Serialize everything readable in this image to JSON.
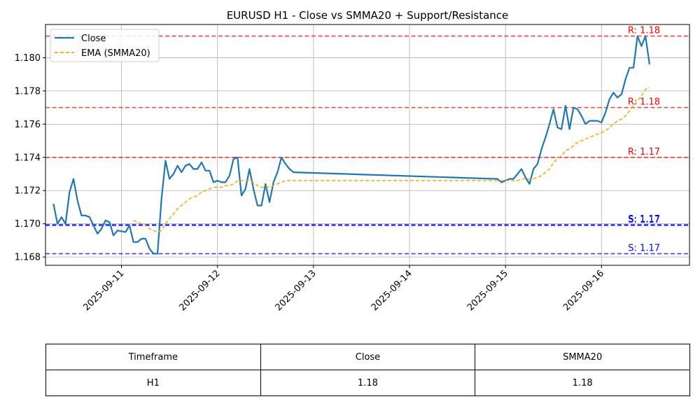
{
  "chart_data": {
    "type": "line",
    "title": "EURUSD H1 - Close vs SMMA20 + Support/Resistance",
    "xlabel": "",
    "ylabel": "",
    "xlim": [
      "2025-09-10T05:00",
      "2025-09-16T22:00"
    ],
    "ylim": [
      1.1675,
      1.182
    ],
    "x_ticks": [
      "2025-09-11",
      "2025-09-12",
      "2025-09-13",
      "2025-09-14",
      "2025-09-15",
      "2025-09-16"
    ],
    "y_ticks": [
      "1.168",
      "1.170",
      "1.172",
      "1.174",
      "1.176",
      "1.178",
      "1.180"
    ],
    "grid": true,
    "legend": "top-left",
    "series": [
      {
        "name": "Close",
        "color": "#1f77b4",
        "style": "solid",
        "points": [
          [
            "2025-09-10T07:00",
            1.1712
          ],
          [
            "2025-09-10T08:00",
            1.17
          ],
          [
            "2025-09-10T09:00",
            1.1704
          ],
          [
            "2025-09-10T10:00",
            1.17
          ],
          [
            "2025-09-10T11:00",
            1.1719
          ],
          [
            "2025-09-10T12:00",
            1.1727
          ],
          [
            "2025-09-10T13:00",
            1.1714
          ],
          [
            "2025-09-10T14:00",
            1.1705
          ],
          [
            "2025-09-10T15:00",
            1.1705
          ],
          [
            "2025-09-10T16:00",
            1.1704
          ],
          [
            "2025-09-10T17:00",
            1.1699
          ],
          [
            "2025-09-10T18:00",
            1.1694
          ],
          [
            "2025-09-10T19:00",
            1.1697
          ],
          [
            "2025-09-10T20:00",
            1.1702
          ],
          [
            "2025-09-10T21:00",
            1.1701
          ],
          [
            "2025-09-10T22:00",
            1.1693
          ],
          [
            "2025-09-10T23:00",
            1.1696
          ],
          [
            "2025-09-11T01:00",
            1.1695
          ],
          [
            "2025-09-11T02:00",
            1.1699
          ],
          [
            "2025-09-11T03:00",
            1.1689
          ],
          [
            "2025-09-11T04:00",
            1.1689
          ],
          [
            "2025-09-11T05:00",
            1.1691
          ],
          [
            "2025-09-11T06:00",
            1.1691
          ],
          [
            "2025-09-11T07:00",
            1.1685
          ],
          [
            "2025-09-11T08:00",
            1.1682
          ],
          [
            "2025-09-11T09:00",
            1.1682
          ],
          [
            "2025-09-11T10:00",
            1.1715
          ],
          [
            "2025-09-11T11:00",
            1.1738
          ],
          [
            "2025-09-11T12:00",
            1.1727
          ],
          [
            "2025-09-11T13:00",
            1.173
          ],
          [
            "2025-09-11T14:00",
            1.1735
          ],
          [
            "2025-09-11T15:00",
            1.1731
          ],
          [
            "2025-09-11T16:00",
            1.1735
          ],
          [
            "2025-09-11T17:00",
            1.1736
          ],
          [
            "2025-09-11T18:00",
            1.1733
          ],
          [
            "2025-09-11T19:00",
            1.1733
          ],
          [
            "2025-09-11T20:00",
            1.1737
          ],
          [
            "2025-09-11T21:00",
            1.1732
          ],
          [
            "2025-09-11T22:00",
            1.1732
          ],
          [
            "2025-09-11T23:00",
            1.1725
          ],
          [
            "2025-09-12T00:00",
            1.1726
          ],
          [
            "2025-09-12T01:00",
            1.1725
          ],
          [
            "2025-09-12T02:00",
            1.1725
          ],
          [
            "2025-09-12T03:00",
            1.1729
          ],
          [
            "2025-09-12T04:00",
            1.1739
          ],
          [
            "2025-09-12T05:00",
            1.174
          ],
          [
            "2025-09-12T06:00",
            1.1717
          ],
          [
            "2025-09-12T07:00",
            1.1721
          ],
          [
            "2025-09-12T08:00",
            1.1733
          ],
          [
            "2025-09-12T09:00",
            1.1721
          ],
          [
            "2025-09-12T10:00",
            1.1711
          ],
          [
            "2025-09-12T11:00",
            1.1711
          ],
          [
            "2025-09-12T12:00",
            1.1724
          ],
          [
            "2025-09-12T13:00",
            1.1713
          ],
          [
            "2025-09-12T14:00",
            1.1725
          ],
          [
            "2025-09-12T15:00",
            1.1731
          ],
          [
            "2025-09-12T16:00",
            1.174
          ],
          [
            "2025-09-12T17:00",
            1.1736
          ],
          [
            "2025-09-12T18:00",
            1.1733
          ],
          [
            "2025-09-12T19:00",
            1.1731
          ],
          [
            "2025-09-14T22:00",
            1.1727
          ],
          [
            "2025-09-14T23:00",
            1.1725
          ],
          [
            "2025-09-15T00:00",
            1.1726
          ],
          [
            "2025-09-15T01:00",
            1.1727
          ],
          [
            "2025-09-15T02:00",
            1.1727
          ],
          [
            "2025-09-15T03:00",
            1.173
          ],
          [
            "2025-09-15T04:00",
            1.1733
          ],
          [
            "2025-09-15T05:00",
            1.1728
          ],
          [
            "2025-09-15T06:00",
            1.1724
          ],
          [
            "2025-09-15T07:00",
            1.1733
          ],
          [
            "2025-09-15T08:00",
            1.1736
          ],
          [
            "2025-09-15T09:00",
            1.1745
          ],
          [
            "2025-09-15T10:00",
            1.1752
          ],
          [
            "2025-09-15T11:00",
            1.176
          ],
          [
            "2025-09-15T12:00",
            1.1769
          ],
          [
            "2025-09-15T13:00",
            1.1758
          ],
          [
            "2025-09-15T14:00",
            1.1757
          ],
          [
            "2025-09-15T15:00",
            1.1771
          ],
          [
            "2025-09-15T16:00",
            1.1757
          ],
          [
            "2025-09-15T17:00",
            1.177
          ],
          [
            "2025-09-15T18:00",
            1.1769
          ],
          [
            "2025-09-15T19:00",
            1.1765
          ],
          [
            "2025-09-15T20:00",
            1.176
          ],
          [
            "2025-09-15T21:00",
            1.1762
          ],
          [
            "2025-09-15T22:00",
            1.1762
          ],
          [
            "2025-09-15T23:00",
            1.1762
          ],
          [
            "2025-09-16T00:00",
            1.1761
          ],
          [
            "2025-09-16T01:00",
            1.1767
          ],
          [
            "2025-09-16T02:00",
            1.1775
          ],
          [
            "2025-09-16T03:00",
            1.1779
          ],
          [
            "2025-09-16T04:00",
            1.1776
          ],
          [
            "2025-09-16T05:00",
            1.1778
          ],
          [
            "2025-09-16T06:00",
            1.1787
          ],
          [
            "2025-09-16T07:00",
            1.1794
          ],
          [
            "2025-09-16T08:00",
            1.1794
          ],
          [
            "2025-09-16T09:00",
            1.1813
          ],
          [
            "2025-09-16T10:00",
            1.1807
          ],
          [
            "2025-09-16T11:00",
            1.1813
          ],
          [
            "2025-09-16T12:00",
            1.1796
          ]
        ]
      },
      {
        "name": "EMA (SMMA20)",
        "color": "#ffa500",
        "style": "dashed",
        "points": [
          [
            "2025-09-11T03:00",
            1.1702
          ],
          [
            "2025-09-11T04:00",
            1.1701
          ],
          [
            "2025-09-11T05:00",
            1.17
          ],
          [
            "2025-09-11T06:00",
            1.1699
          ],
          [
            "2025-09-11T07:00",
            1.1697
          ],
          [
            "2025-09-11T08:00",
            1.1696
          ],
          [
            "2025-09-11T09:00",
            1.1695
          ],
          [
            "2025-09-11T10:00",
            1.1696
          ],
          [
            "2025-09-11T11:00",
            1.17
          ],
          [
            "2025-09-11T12:00",
            1.1703
          ],
          [
            "2025-09-11T13:00",
            1.1706
          ],
          [
            "2025-09-11T14:00",
            1.1709
          ],
          [
            "2025-09-11T15:00",
            1.1711
          ],
          [
            "2025-09-11T16:00",
            1.1713
          ],
          [
            "2025-09-11T17:00",
            1.1715
          ],
          [
            "2025-09-11T18:00",
            1.1716
          ],
          [
            "2025-09-11T19:00",
            1.1717
          ],
          [
            "2025-09-11T20:00",
            1.1719
          ],
          [
            "2025-09-11T21:00",
            1.172
          ],
          [
            "2025-09-11T22:00",
            1.1721
          ],
          [
            "2025-09-11T23:00",
            1.1722
          ],
          [
            "2025-09-12T00:00",
            1.1722
          ],
          [
            "2025-09-12T01:00",
            1.1722
          ],
          [
            "2025-09-12T02:00",
            1.1723
          ],
          [
            "2025-09-12T03:00",
            1.1723
          ],
          [
            "2025-09-12T04:00",
            1.1724
          ],
          [
            "2025-09-12T05:00",
            1.1726
          ],
          [
            "2025-09-12T06:00",
            1.1726
          ],
          [
            "2025-09-12T07:00",
            1.1726
          ],
          [
            "2025-09-12T08:00",
            1.1726
          ],
          [
            "2025-09-12T09:00",
            1.1725
          ],
          [
            "2025-09-12T10:00",
            1.1723
          ],
          [
            "2025-09-12T11:00",
            1.1722
          ],
          [
            "2025-09-12T12:00",
            1.1722
          ],
          [
            "2025-09-12T13:00",
            1.1722
          ],
          [
            "2025-09-12T14:00",
            1.1723
          ],
          [
            "2025-09-12T15:00",
            1.1724
          ],
          [
            "2025-09-12T16:00",
            1.1725
          ],
          [
            "2025-09-12T17:00",
            1.1726
          ],
          [
            "2025-09-12T18:00",
            1.1726
          ],
          [
            "2025-09-12T19:00",
            1.1726
          ],
          [
            "2025-09-14T22:00",
            1.1726
          ],
          [
            "2025-09-14T23:00",
            1.1726
          ],
          [
            "2025-09-15T00:00",
            1.1726
          ],
          [
            "2025-09-15T01:00",
            1.1726
          ],
          [
            "2025-09-15T02:00",
            1.1726
          ],
          [
            "2025-09-15T03:00",
            1.1726
          ],
          [
            "2025-09-15T04:00",
            1.1727
          ],
          [
            "2025-09-15T05:00",
            1.1727
          ],
          [
            "2025-09-15T06:00",
            1.1727
          ],
          [
            "2025-09-15T07:00",
            1.1727
          ],
          [
            "2025-09-15T08:00",
            1.1728
          ],
          [
            "2025-09-15T09:00",
            1.1729
          ],
          [
            "2025-09-15T10:00",
            1.1731
          ],
          [
            "2025-09-15T11:00",
            1.1733
          ],
          [
            "2025-09-15T12:00",
            1.1737
          ],
          [
            "2025-09-15T13:00",
            1.1739
          ],
          [
            "2025-09-15T14:00",
            1.1741
          ],
          [
            "2025-09-15T15:00",
            1.1744
          ],
          [
            "2025-09-15T16:00",
            1.1745
          ],
          [
            "2025-09-15T17:00",
            1.1747
          ],
          [
            "2025-09-15T18:00",
            1.1749
          ],
          [
            "2025-09-15T19:00",
            1.175
          ],
          [
            "2025-09-15T20:00",
            1.1751
          ],
          [
            "2025-09-15T21:00",
            1.1752
          ],
          [
            "2025-09-15T22:00",
            1.1753
          ],
          [
            "2025-09-15T23:00",
            1.1754
          ],
          [
            "2025-09-16T00:00",
            1.1755
          ],
          [
            "2025-09-16T01:00",
            1.1756
          ],
          [
            "2025-09-16T02:00",
            1.1758
          ],
          [
            "2025-09-16T03:00",
            1.176
          ],
          [
            "2025-09-16T04:00",
            1.1762
          ],
          [
            "2025-09-16T05:00",
            1.1763
          ],
          [
            "2025-09-16T06:00",
            1.1765
          ],
          [
            "2025-09-16T07:00",
            1.1768
          ],
          [
            "2025-09-16T08:00",
            1.1771
          ],
          [
            "2025-09-16T09:00",
            1.1774
          ],
          [
            "2025-09-16T10:00",
            1.1777
          ],
          [
            "2025-09-16T11:00",
            1.1781
          ],
          [
            "2025-09-16T12:00",
            1.1782
          ]
        ]
      }
    ],
    "levels": [
      {
        "kind": "resistance",
        "value": 1.1813,
        "label": "R: 1.18",
        "color": "#ff0000"
      },
      {
        "kind": "resistance",
        "value": 1.177,
        "label": "R: 1.18",
        "color": "#ff0000"
      },
      {
        "kind": "resistance",
        "value": 1.174,
        "label": "R: 1.17",
        "color": "#ff0000"
      },
      {
        "kind": "support",
        "value": 1.1699,
        "label": "S: 1.17",
        "color": "#0000ff"
      },
      {
        "kind": "support",
        "value": 1.16995,
        "label": "S: 1.17",
        "color": "#0000ff"
      },
      {
        "kind": "support",
        "value": 1.1682,
        "label": "S: 1.17",
        "color": "#0000ff"
      }
    ]
  },
  "table": {
    "headers": [
      "Timeframe",
      "Close",
      "SMMA20"
    ],
    "rows": [
      [
        "H1",
        "1.18",
        "1.18"
      ]
    ]
  }
}
